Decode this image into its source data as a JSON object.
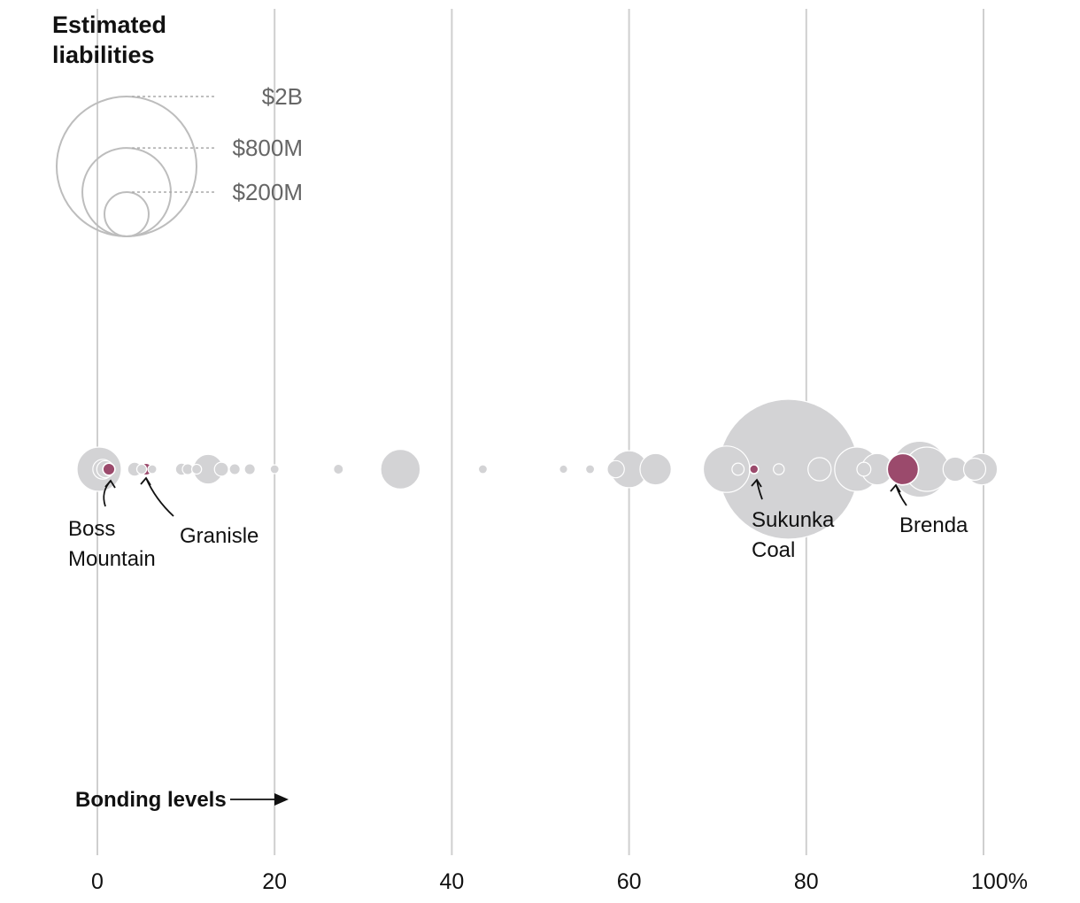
{
  "chart_data": {
    "type": "scatter",
    "xlabel": "Bonding levels",
    "xlim": [
      0,
      100
    ],
    "x_ticks": [
      {
        "value": 0,
        "label": "0"
      },
      {
        "value": 20,
        "label": "20"
      },
      {
        "value": 40,
        "label": "40"
      },
      {
        "value": 60,
        "label": "60"
      },
      {
        "value": 80,
        "label": "80"
      },
      {
        "value": 100,
        "label": "100%"
      }
    ],
    "legend": {
      "title_lines": [
        "Estimated",
        "liabilities"
      ],
      "entries": [
        {
          "value_millions": 2000,
          "label": "$2B"
        },
        {
          "value_millions": 800,
          "label": "$800M"
        },
        {
          "value_millions": 200,
          "label": "$200M"
        }
      ]
    },
    "colors": {
      "gray": "#d3d3d5",
      "highlight": "#9b4a6c",
      "grid": "#cfcfcf",
      "legend_stroke": "#bdbdbd",
      "legend_text": "#666666",
      "text": "#111111"
    },
    "points": [
      {
        "bonding": 0.2,
        "liability_millions": 200
      },
      {
        "bonding": 0.6,
        "liability_millions": 40
      },
      {
        "bonding": 0.9,
        "liability_millions": 30
      },
      {
        "bonding": 1.3,
        "liability_millions": 15,
        "name": "Boss Mountain",
        "highlight": true
      },
      {
        "bonding": 4.2,
        "liability_millions": 20
      },
      {
        "bonding": 5.0,
        "liability_millions": 10
      },
      {
        "bonding": 5.5,
        "liability_millions": 15,
        "name": "Granisle",
        "highlight": true
      },
      {
        "bonding": 6.2,
        "liability_millions": 8
      },
      {
        "bonding": 9.5,
        "liability_millions": 15
      },
      {
        "bonding": 10.2,
        "liability_millions": 12
      },
      {
        "bonding": 11.2,
        "liability_millions": 10
      },
      {
        "bonding": 12.5,
        "liability_millions": 90
      },
      {
        "bonding": 14.0,
        "liability_millions": 20
      },
      {
        "bonding": 15.5,
        "liability_millions": 12
      },
      {
        "bonding": 17.2,
        "liability_millions": 12
      },
      {
        "bonding": 20.0,
        "liability_millions": 8
      },
      {
        "bonding": 27.2,
        "liability_millions": 10
      },
      {
        "bonding": 34.2,
        "liability_millions": 160
      },
      {
        "bonding": 43.5,
        "liability_millions": 8
      },
      {
        "bonding": 52.6,
        "liability_millions": 7
      },
      {
        "bonding": 55.6,
        "liability_millions": 8
      },
      {
        "bonding": 58.5,
        "liability_millions": 30
      },
      {
        "bonding": 60.0,
        "liability_millions": 140
      },
      {
        "bonding": 63.0,
        "liability_millions": 100
      },
      {
        "bonding": 71.0,
        "liability_millions": 220
      },
      {
        "bonding": 72.3,
        "liability_millions": 15
      },
      {
        "bonding": 74.1,
        "liability_millions": 8,
        "name": "Sukunka Coal",
        "highlight": true
      },
      {
        "bonding": 76.9,
        "liability_millions": 12
      },
      {
        "bonding": 78.0,
        "liability_millions": 2000
      },
      {
        "bonding": 81.5,
        "liability_millions": 55
      },
      {
        "bonding": 85.7,
        "liability_millions": 200
      },
      {
        "bonding": 86.5,
        "liability_millions": 20
      },
      {
        "bonding": 88.0,
        "liability_millions": 100
      },
      {
        "bonding": 90.9,
        "liability_millions": 100,
        "name": "Brenda",
        "highlight": true
      },
      {
        "bonding": 92.8,
        "liability_millions": 320
      },
      {
        "bonding": 93.6,
        "liability_millions": 200
      },
      {
        "bonding": 96.8,
        "liability_millions": 60
      },
      {
        "bonding": 99.0,
        "liability_millions": 50
      },
      {
        "bonding": 99.8,
        "liability_millions": 100
      }
    ],
    "annotations": [
      {
        "target": "Boss Mountain",
        "lines": [
          "Boss",
          "Mountain"
        ]
      },
      {
        "target": "Granisle",
        "lines": [
          "Granisle"
        ]
      },
      {
        "target": "Sukunka Coal",
        "lines": [
          "Sukunka",
          "Coal"
        ]
      },
      {
        "target": "Brenda",
        "lines": [
          "Brenda"
        ]
      }
    ]
  }
}
